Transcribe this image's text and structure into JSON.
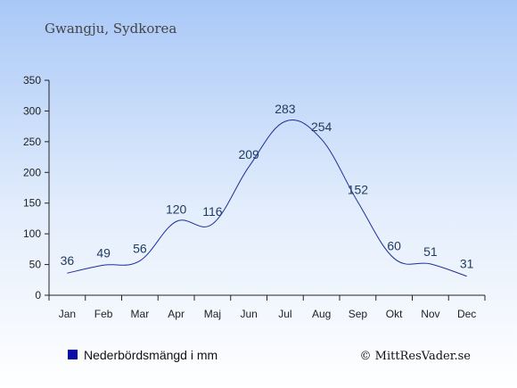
{
  "header": {
    "title": "Gwangju, Sydkorea"
  },
  "legend": {
    "label": "Nederbördsmängd i mm",
    "color": "#0a0aa8"
  },
  "credit": {
    "text": "© MittResVader.se"
  },
  "colors": {
    "bg_top": "#a9c8f7",
    "bg_bottom": "#ffffff",
    "line": "#1c2f9a",
    "axis": "#222222"
  },
  "chart_data": {
    "type": "line",
    "categories": [
      "Jan",
      "Feb",
      "Mar",
      "Apr",
      "Maj",
      "Jun",
      "Jul",
      "Aug",
      "Sep",
      "Okt",
      "Nov",
      "Dec"
    ],
    "series": [
      {
        "name": "Nederbördsmängd i mm",
        "values": [
          36,
          49,
          56,
          120,
          116,
          209,
          283,
          254,
          152,
          60,
          51,
          31
        ]
      }
    ],
    "ylim": [
      0,
      350
    ],
    "yticks": [
      0,
      50,
      100,
      150,
      200,
      250,
      300,
      350
    ],
    "grid": false,
    "legend_position": "bottom-left"
  }
}
